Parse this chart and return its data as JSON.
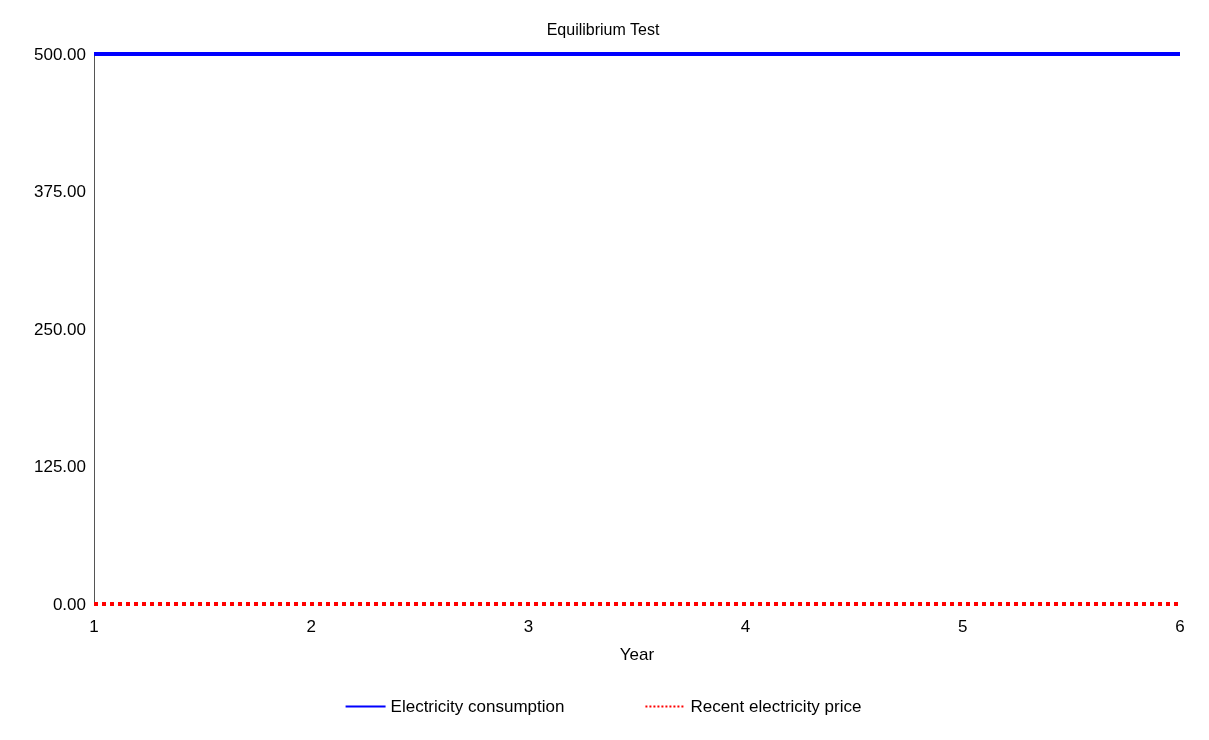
{
  "chart_data": {
    "type": "line",
    "title": "Equilibrium Test",
    "xlabel": "Year",
    "x": [
      1,
      6
    ],
    "series": [
      {
        "name": "Electricity consumption",
        "color": "#0000ff",
        "values": [
          500,
          500
        ],
        "line_style": "solid"
      },
      {
        "name": "Recent electricity price",
        "color": "#ff0000",
        "values": [
          0,
          0
        ],
        "line_style": "dotted"
      }
    ],
    "xlim": [
      1,
      6
    ],
    "xticks": [
      1,
      2,
      3,
      4,
      5,
      6
    ],
    "ylim": [
      0,
      500
    ],
    "yticks": [
      {
        "value": 0,
        "label": "0.00"
      },
      {
        "value": 125,
        "label": "125.00"
      },
      {
        "value": 250,
        "label": "250.00"
      },
      {
        "value": 375,
        "label": "375.00"
      },
      {
        "value": 500,
        "label": "500.00"
      }
    ],
    "grid": false,
    "legend": "bottom",
    "marker": "none"
  }
}
